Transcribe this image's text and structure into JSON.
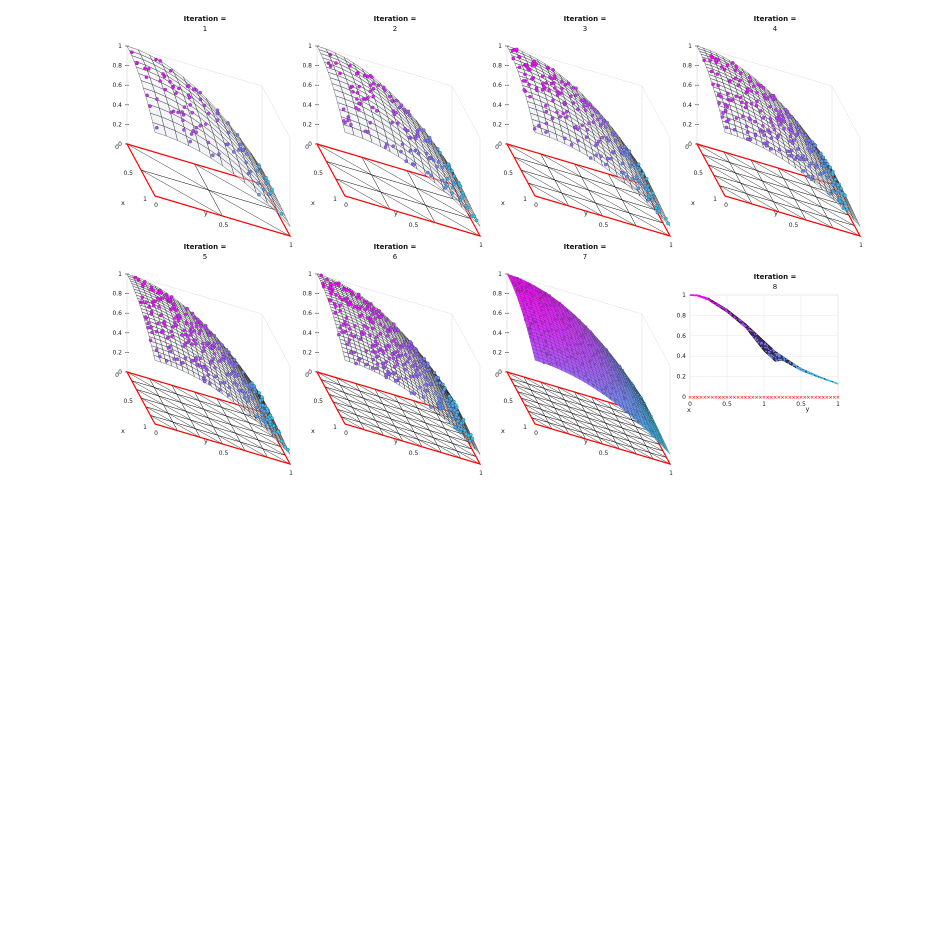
{
  "figure": {
    "background": "#ffffff"
  },
  "colors": {
    "mesh_domain": "#ff0000",
    "mesh_edge": "#000000",
    "low": "#00f0f0",
    "high": "#ff00ff"
  },
  "panels": [
    {
      "title": "Iteration =",
      "subtitle": "1",
      "type": "3d",
      "mesh": 1
    },
    {
      "title": "Iteration =",
      "subtitle": "2",
      "type": "3d",
      "mesh": 2
    },
    {
      "title": "Iteration =",
      "subtitle": "3",
      "type": "3d",
      "mesh": 3
    },
    {
      "title": "Iteration =",
      "subtitle": "4",
      "type": "3d",
      "mesh": 4
    },
    {
      "title": "Iteration =",
      "subtitle": "5",
      "type": "3d",
      "mesh": 5
    },
    {
      "title": "Iteration =",
      "subtitle": "6",
      "type": "3d",
      "mesh": 6
    },
    {
      "title": "Iteration =",
      "subtitle": "7",
      "type": "3d",
      "mesh": 7
    },
    {
      "title": "Iteration =",
      "subtitle": "8",
      "type": "2d",
      "mesh": 8
    }
  ],
  "chart_data": {
    "type": "scatter",
    "description_source": "surface plot of solution over unit square on adaptively refined mesh",
    "axes3d": {
      "xlabel": "x",
      "ylabel": "y",
      "x_ticks": [
        "0",
        "0.5",
        "1"
      ],
      "y_ticks": [
        "0",
        "0.5",
        "1"
      ],
      "z_ticks": [
        "0",
        "0.2",
        "0.4",
        "0.6",
        "0.8",
        "1"
      ],
      "zlim": [
        0,
        1
      ]
    },
    "axes2d": {
      "xlabel": "x",
      "ylabel": "y",
      "x_ticks": [
        "0",
        "0.5",
        "1",
        "0.5",
        "1"
      ],
      "y_ticks": [
        "0",
        "0.2",
        "0.4",
        "0.6",
        "0.8",
        "1"
      ],
      "ylim": [
        0,
        1
      ]
    },
    "profile_2d": {
      "x": [
        0,
        0.1,
        0.25,
        0.5,
        0.75,
        1.0,
        1.15,
        1.25,
        1.5,
        1.75,
        2.0
      ],
      "y_upper": [
        1.0,
        1.0,
        0.97,
        0.86,
        0.72,
        0.55,
        0.45,
        0.4,
        0.28,
        0.2,
        0.13
      ],
      "y_lower": [
        1.0,
        0.99,
        0.95,
        0.83,
        0.68,
        0.45,
        0.35,
        0.36,
        0.26,
        0.19,
        0.13
      ]
    }
  }
}
